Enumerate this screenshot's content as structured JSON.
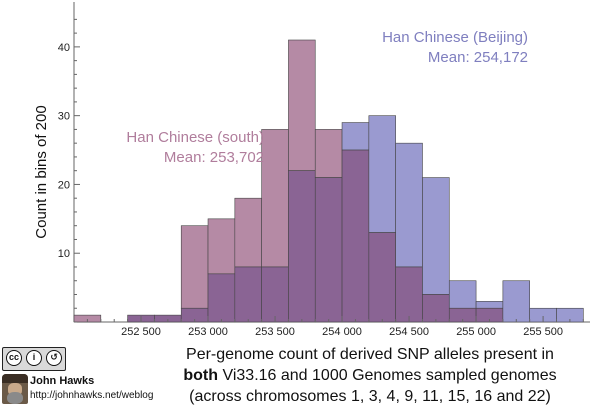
{
  "chart_data": {
    "type": "histogram",
    "xlabel_lines": [
      [
        {
          "text": "Per-genome count of derived SNP alleles present in",
          "bold": false
        }
      ],
      [
        {
          "text": "both",
          "bold": true
        },
        {
          "text": " Vi33.16 and 1000 Genomes sampled genomes",
          "bold": false
        }
      ],
      [
        {
          "text": "(across chromosomes 1, 3, 4, 9, 11, 15, 16 and 22)",
          "bold": false
        }
      ]
    ],
    "ylabel": "Count in bins of 200",
    "xlim": [
      252000,
      255850
    ],
    "ylim": [
      0,
      45
    ],
    "xticks": [
      252500,
      253000,
      253500,
      254000,
      254500,
      255000,
      255500
    ],
    "xtick_labels": [
      "252 500",
      "253 000",
      "253 500",
      "254 000",
      "254 500",
      "255 000",
      "255 500"
    ],
    "yticks": [
      10,
      20,
      30,
      40
    ],
    "bin_width": 200,
    "bin_starts": [
      252000,
      252200,
      252400,
      252600,
      252800,
      253000,
      253200,
      253400,
      253600,
      253800,
      254000,
      254200,
      254400,
      254600,
      254800,
      255000,
      255200,
      255400,
      255600
    ],
    "series": [
      {
        "name": "Han Chinese (south)",
        "color": "#b58aa5",
        "counts": [
          1,
          0,
          1,
          1,
          14,
          15,
          18,
          28,
          41,
          28,
          25,
          13,
          8,
          4,
          2,
          2,
          0,
          0,
          0
        ]
      },
      {
        "name": "Han Chinese (Beijing)",
        "color": "#9a9ad0",
        "counts": [
          0,
          0,
          1,
          1,
          2,
          7,
          8,
          8,
          22,
          21,
          29,
          30,
          26,
          21,
          6,
          3,
          6,
          2,
          2
        ]
      }
    ],
    "overlap_color": "#8a6494",
    "annotations": [
      {
        "lines": [
          "Han Chinese (south)",
          "Mean: 253,702"
        ],
        "color": "#b07d9c",
        "align": "end"
      },
      {
        "lines": [
          "Han Chinese (Beijing)",
          "Mean: 254,172"
        ],
        "color": "#7f7fbf",
        "align": "end"
      }
    ]
  },
  "credit": {
    "license_badge": "cc by sa",
    "author": "John Hawks",
    "url": "http://johnhawks.net/weblog"
  }
}
